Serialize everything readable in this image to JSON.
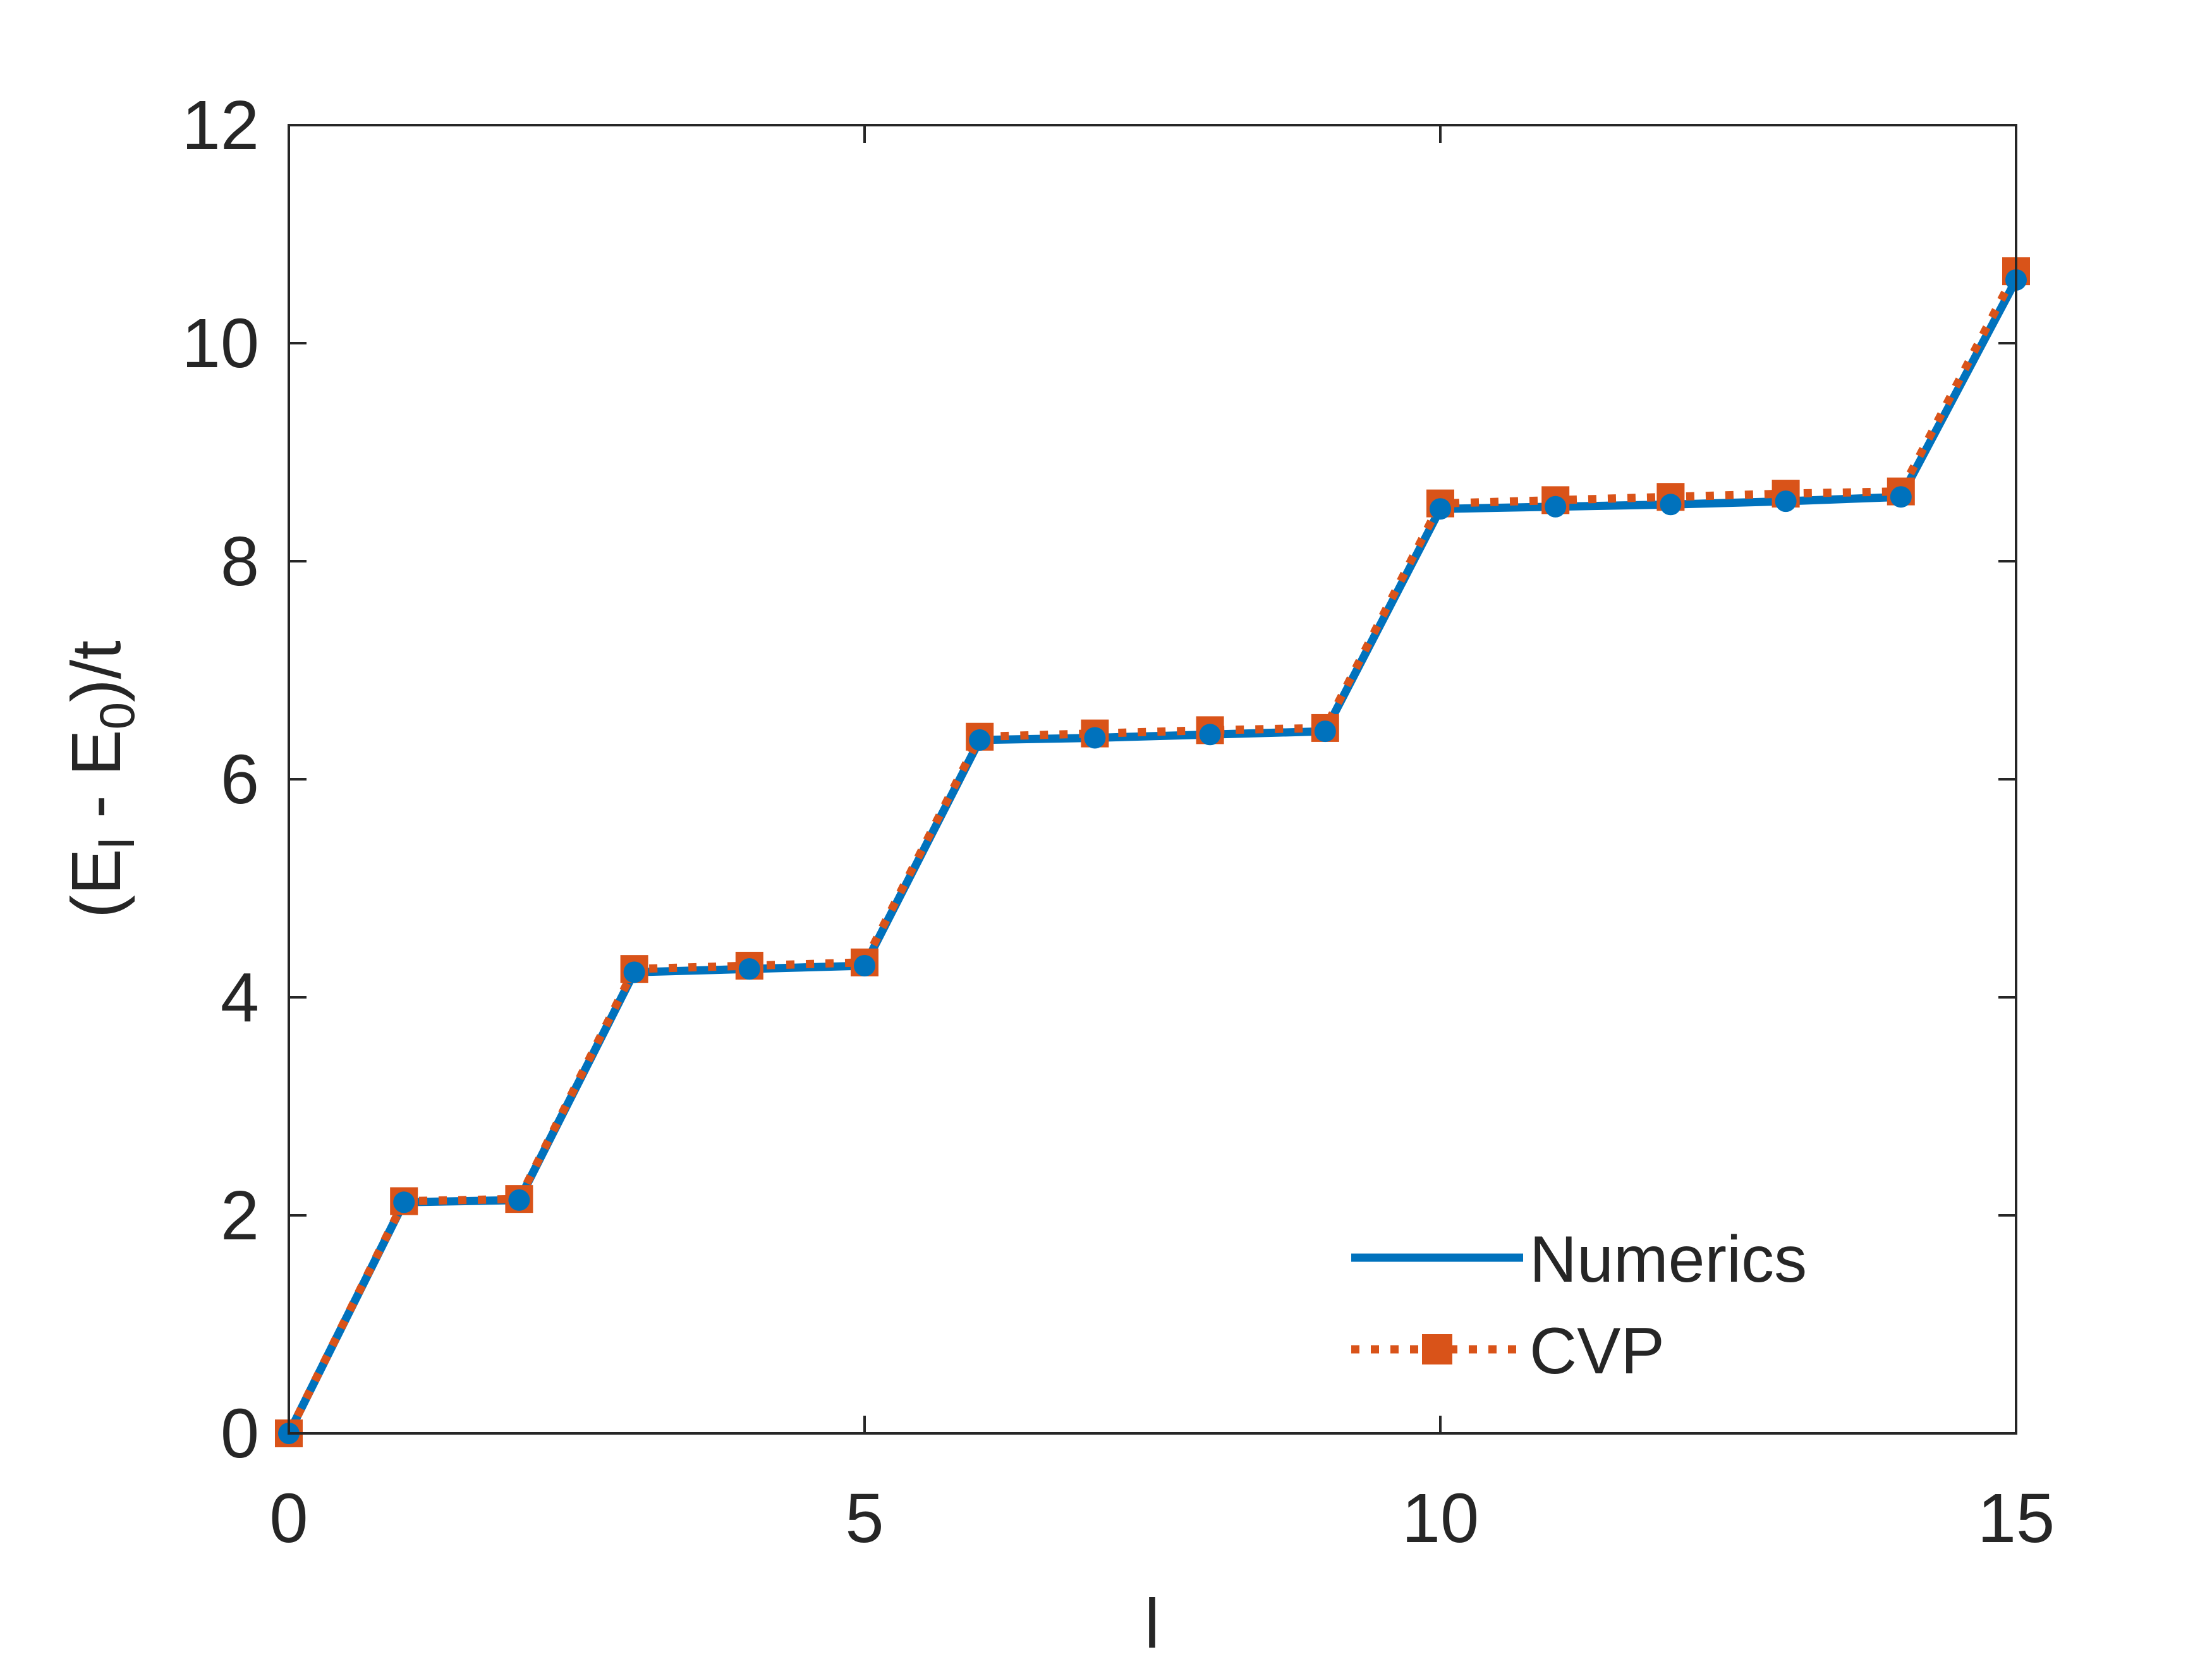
{
  "chart_data": {
    "type": "line",
    "title": "",
    "xlabel": "l",
    "ylabel": {
      "main": "(E",
      "sub1": "l",
      "mid": " - E",
      "sub2": "0",
      "end": ")/t"
    },
    "xlim": [
      0,
      15
    ],
    "ylim": [
      0,
      12
    ],
    "xticks": [
      0,
      5,
      10,
      15
    ],
    "yticks": [
      0,
      2,
      4,
      6,
      8,
      10,
      12
    ],
    "grid": false,
    "legend_position": "bottom-right",
    "x": [
      0,
      1,
      2,
      3,
      4,
      5,
      6,
      7,
      8,
      9,
      10,
      11,
      12,
      13,
      14,
      15
    ],
    "series": [
      {
        "name": "Numerics",
        "color": "#0072BD",
        "style": "solid",
        "values": [
          0,
          2.12,
          2.14,
          4.23,
          4.26,
          4.29,
          6.36,
          6.38,
          6.41,
          6.44,
          8.48,
          8.5,
          8.52,
          8.55,
          8.59,
          10.58
        ]
      },
      {
        "name": "CVP",
        "color": "#D95319",
        "style": "dotted",
        "marker": "square",
        "values": [
          0,
          2.13,
          2.15,
          4.26,
          4.29,
          4.32,
          6.39,
          6.42,
          6.45,
          6.47,
          8.53,
          8.56,
          8.59,
          8.62,
          8.64,
          10.66
        ]
      }
    ]
  }
}
